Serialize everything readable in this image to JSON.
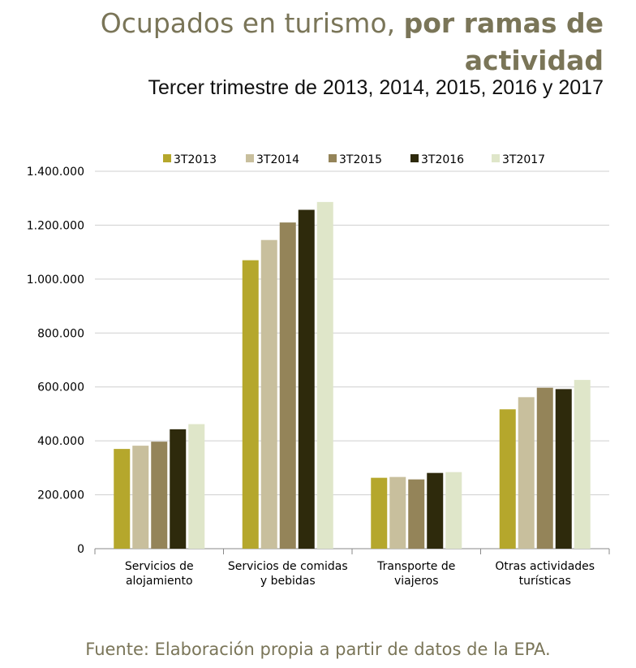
{
  "title_normal": "Ocupados en turismo, ",
  "title_bold_1": "por ramas de",
  "title_bold_2": "actividad",
  "subtitle": "Tercer trimestre de 2013, 2014, 2015, 2016 y 2017",
  "source": "Fuente: Elaboración propia a partir de datos de la EPA.",
  "chart_data": {
    "type": "bar",
    "categories": [
      [
        "Servicios de",
        "alojamiento"
      ],
      [
        "Servicios de comidas",
        "y bebidas"
      ],
      [
        "Transporte de",
        "viajeros"
      ],
      [
        "Otras actividades",
        "turísticas"
      ]
    ],
    "series": [
      {
        "name": "3T2013",
        "color": "#b5a72c",
        "values": [
          370000,
          1070000,
          263000,
          517000
        ]
      },
      {
        "name": "3T2014",
        "color": "#c8bf9d",
        "values": [
          382000,
          1145000,
          266000,
          562000
        ]
      },
      {
        "name": "3T2015",
        "color": "#948459",
        "values": [
          397000,
          1210000,
          257000,
          597000
        ]
      },
      {
        "name": "3T2016",
        "color": "#2e2a0c",
        "values": [
          443000,
          1257000,
          281000,
          592000
        ]
      },
      {
        "name": "3T2017",
        "color": "#dfe6c9",
        "values": [
          462000,
          1286000,
          284000,
          626000
        ]
      }
    ],
    "ylim": [
      0,
      1400000
    ],
    "yticks": [
      0,
      200000,
      400000,
      600000,
      800000,
      1000000,
      1200000,
      1400000
    ],
    "ytick_labels": [
      "0",
      "200.000",
      "400.000",
      "600.000",
      "800.000",
      "1.000.000",
      "1.200.000",
      "1.400.000"
    ],
    "grid": true,
    "legend_position": "top"
  }
}
